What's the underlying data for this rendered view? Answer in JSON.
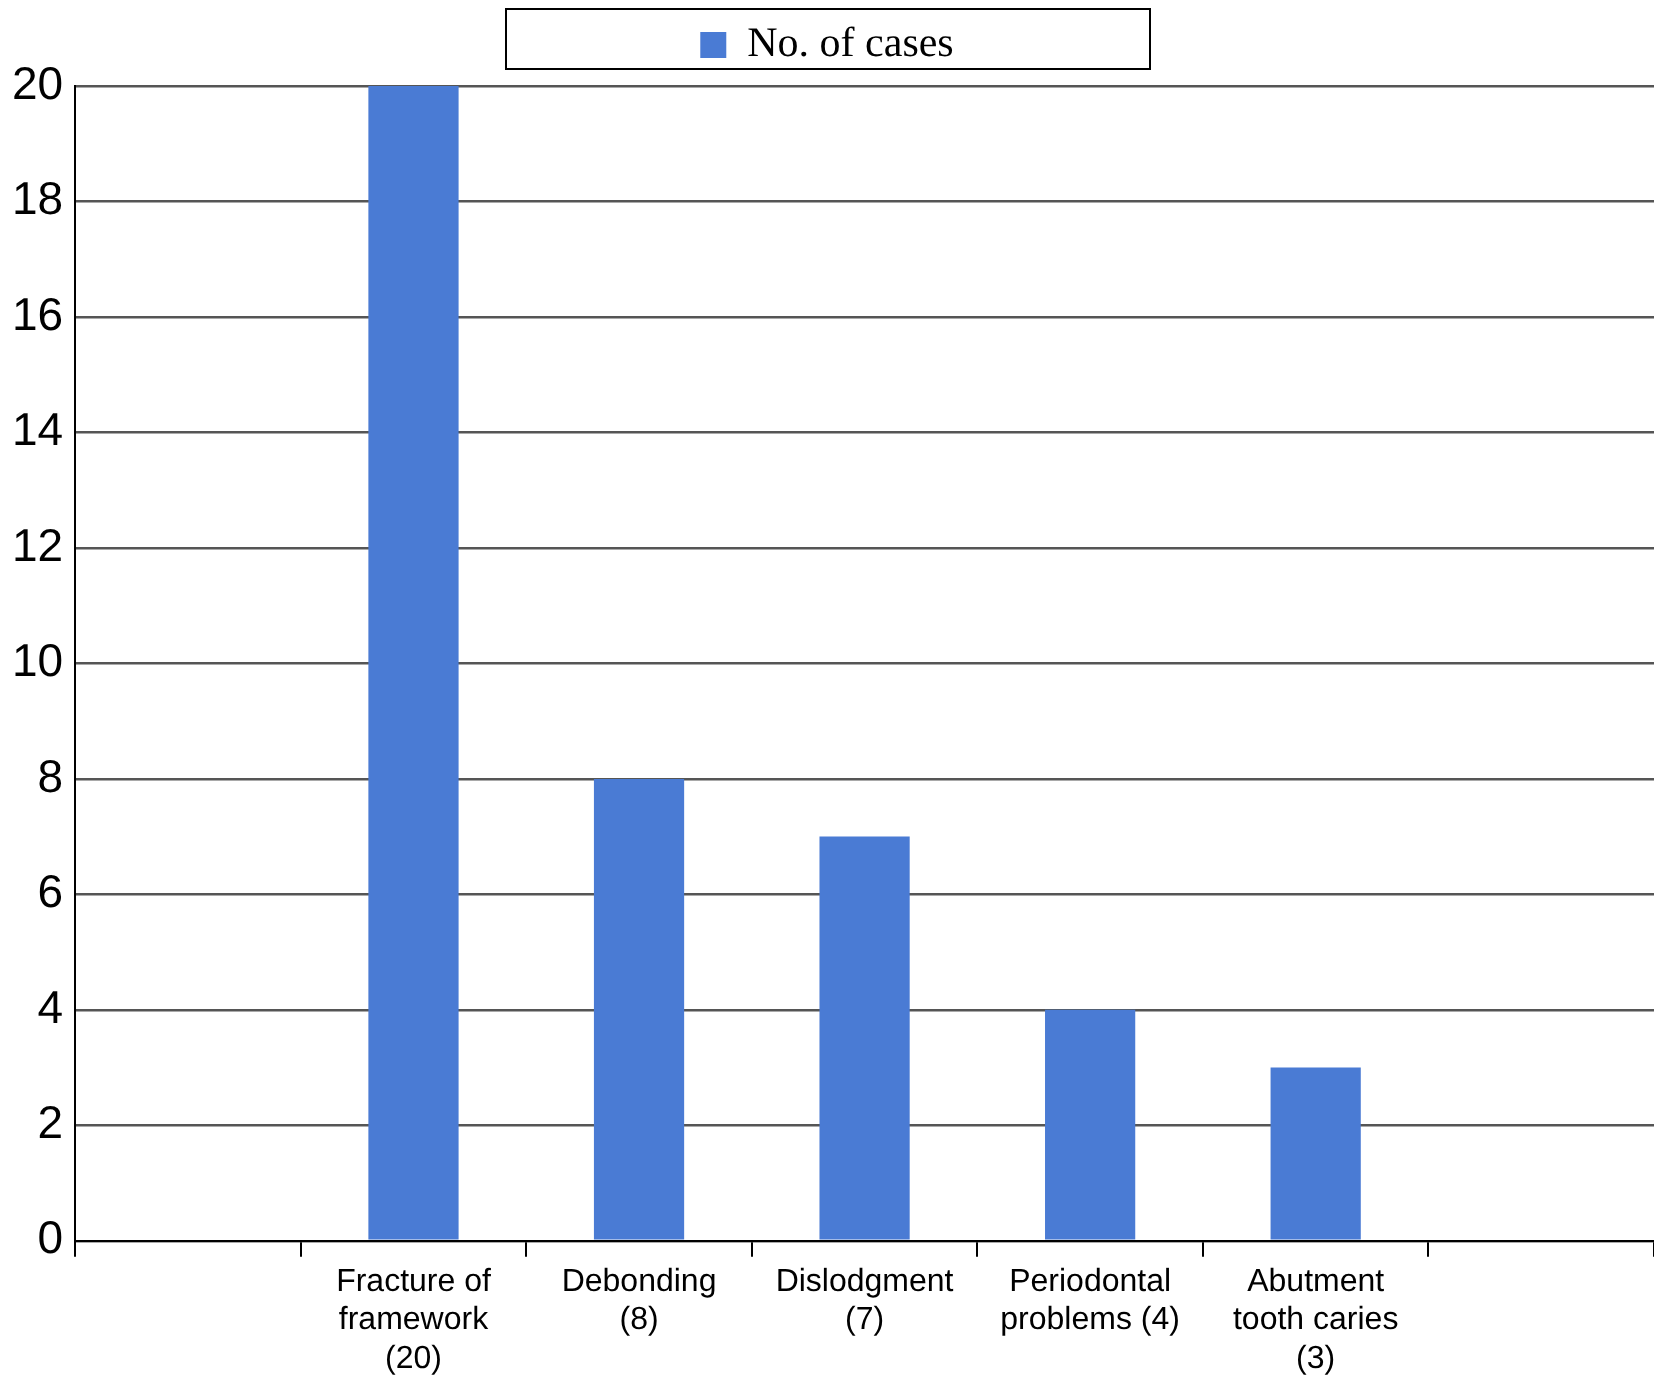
{
  "chart_data": {
    "type": "bar",
    "categories": [
      null,
      "Fracture of\nframework\n(20)",
      "Debonding\n(8)",
      "Dislodgment\n(7)",
      "Periodontal\nproblems (4)",
      "Abutment\ntooth caries\n(3)",
      null
    ],
    "series": [
      {
        "name": "No. of cases",
        "color": "#4a7bd4",
        "values": [
          null,
          20,
          8,
          7,
          4,
          3,
          null
        ]
      }
    ],
    "ylim": [
      0,
      20
    ],
    "yticks": [
      0,
      2,
      4,
      6,
      8,
      10,
      12,
      14,
      16,
      18,
      20
    ],
    "grid": "y",
    "legend": "top"
  }
}
